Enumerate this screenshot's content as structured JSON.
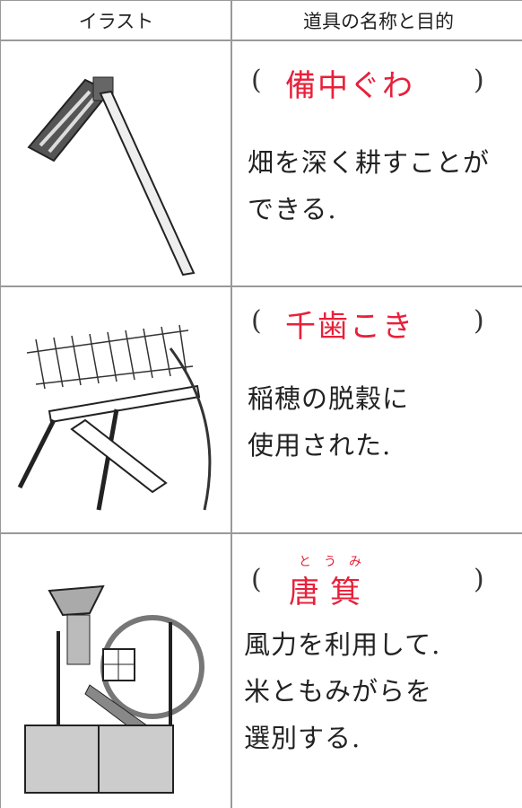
{
  "header": {
    "illustration": "イラスト",
    "name_purpose": "道具の名称と目的"
  },
  "paren": [
    "(",
    ")"
  ],
  "rows": [
    {
      "name": "備中ぐわ",
      "description": [
        "畑を深く耕すことが",
        "できる."
      ]
    },
    {
      "name": "千歯こき",
      "description": [
        "稲穂の脱穀に",
        "使用された."
      ]
    },
    {
      "name": "唐箕",
      "reading": "とうみ",
      "description": [
        "風力を利用して.",
        "米ともみがらを",
        "選別する."
      ]
    }
  ]
}
